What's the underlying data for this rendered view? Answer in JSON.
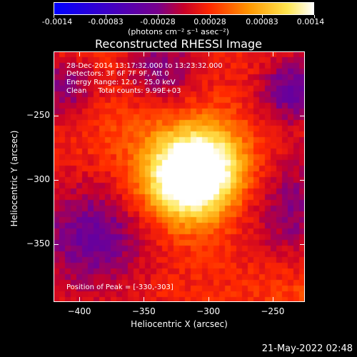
{
  "colorbar": {
    "tick_labels": [
      "-0.0014",
      "-0.00083",
      "-0.00028",
      "0.00028",
      "0.00083",
      "0.0014"
    ],
    "units_label": "(photons cm⁻² s⁻¹ asec⁻²)"
  },
  "title": "Reconstructed RHESSI Image",
  "annotations": {
    "time_range": "28-Dec-2014 13:17:32.000 to 13:23:32.000",
    "detectors": "Detectors: 3F 6F 7F 9F, Att 0",
    "energy_range": "Energy Range: 12.0 - 25.0 keV",
    "algorithm_counts": "Clean     Total counts: 9.99E+03",
    "peak_position": "Position of Peak = [-330,-303]"
  },
  "axes": {
    "xlabel": "Heliocentric X (arcsec)",
    "ylabel": "Heliocentric Y (arcsec)",
    "x_ticks": [
      "-400",
      "-350",
      "-300",
      "-250"
    ],
    "y_ticks": [
      "-250",
      "-300",
      "-350"
    ]
  },
  "timestamp": "21-May-2022 02:48",
  "chart_data": {
    "type": "heatmap",
    "title": "Reconstructed RHESSI Image",
    "xlabel": "Heliocentric X (arcsec)",
    "ylabel": "Heliocentric Y (arcsec)",
    "xlim": [
      -420,
      -225
    ],
    "ylim": [
      -395,
      -200
    ],
    "x_ticks": [
      -400,
      -350,
      -300,
      -250
    ],
    "y_ticks": [
      -250,
      -300,
      -350
    ],
    "colorbar_range": [
      -0.0014,
      0.0014
    ],
    "colormap": "rhessi-hot",
    "peak_position": [
      -330,
      -303
    ],
    "sources": [
      {
        "x": -320,
        "y": -300,
        "amplitude": 0.0014
      },
      {
        "x": -300,
        "y": -290,
        "amplitude": 0.0012
      }
    ],
    "colors": {
      "background": "#000000",
      "text": "#ffffff"
    }
  }
}
